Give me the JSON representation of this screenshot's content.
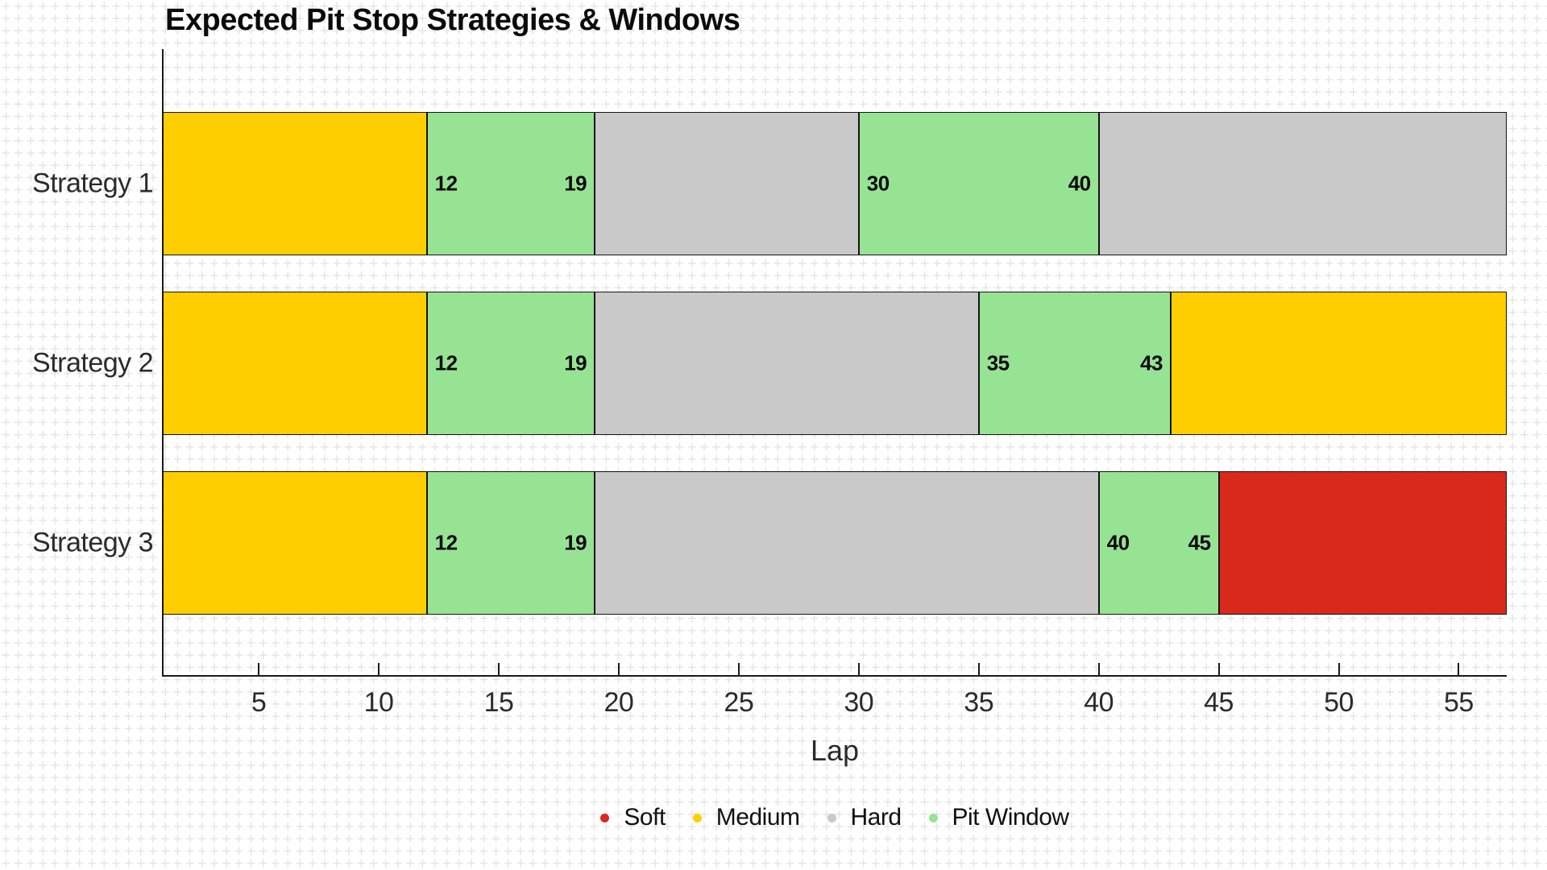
{
  "title": "Expected Pit Stop Strategies & Windows",
  "colors": {
    "soft": "#d9291c",
    "medium": "#ffce00",
    "hard": "#c9c9c9",
    "pit_window": "#97e394",
    "segment_border": "#141414",
    "axis_line": "#1a1a1a",
    "axis_text": "#2b2b2b",
    "title_text": "#0b0b0b",
    "background": "#ffffff",
    "grid_pattern": "#e2e2e2"
  },
  "chart_data": {
    "type": "bar",
    "subtype": "gantt-timeline",
    "orientation": "horizontal",
    "title": "Expected Pit Stop Strategies & Windows",
    "xlabel": "Lap",
    "xlim": [
      1,
      57
    ],
    "x_ticks": [
      "5",
      "10",
      "15",
      "20",
      "25",
      "30",
      "35",
      "40",
      "45",
      "50",
      "55"
    ],
    "grid": "page-wide light plus-sign pattern, no gridlines inside bars",
    "legend_position": "bottom-center",
    "legend": [
      {
        "label": "Soft",
        "color_key": "soft"
      },
      {
        "label": "Medium",
        "color_key": "medium"
      },
      {
        "label": "Hard",
        "color_key": "hard"
      },
      {
        "label": "Pit Window",
        "color_key": "pit_window"
      }
    ],
    "categories": [
      "Strategy 1",
      "Strategy 2",
      "Strategy 3"
    ],
    "series": [
      {
        "name": "Strategy 1",
        "segments": [
          {
            "compound": "Medium",
            "color_key": "medium",
            "start_lap": 1,
            "end_lap": 12
          },
          {
            "compound": "Pit Window",
            "color_key": "pit_window",
            "start_lap": 12,
            "end_lap": 19,
            "start_label": "12",
            "end_label": "19"
          },
          {
            "compound": "Hard",
            "color_key": "hard",
            "start_lap": 19,
            "end_lap": 30
          },
          {
            "compound": "Pit Window",
            "color_key": "pit_window",
            "start_lap": 30,
            "end_lap": 40,
            "start_label": "30",
            "end_label": "40"
          },
          {
            "compound": "Hard",
            "color_key": "hard",
            "start_lap": 40,
            "end_lap": 57
          }
        ]
      },
      {
        "name": "Strategy 2",
        "segments": [
          {
            "compound": "Medium",
            "color_key": "medium",
            "start_lap": 1,
            "end_lap": 12
          },
          {
            "compound": "Pit Window",
            "color_key": "pit_window",
            "start_lap": 12,
            "end_lap": 19,
            "start_label": "12",
            "end_label": "19"
          },
          {
            "compound": "Hard",
            "color_key": "hard",
            "start_lap": 19,
            "end_lap": 35
          },
          {
            "compound": "Pit Window",
            "color_key": "pit_window",
            "start_lap": 35,
            "end_lap": 43,
            "start_label": "35",
            "end_label": "43"
          },
          {
            "compound": "Medium",
            "color_key": "medium",
            "start_lap": 43,
            "end_lap": 57
          }
        ]
      },
      {
        "name": "Strategy 3",
        "segments": [
          {
            "compound": "Medium",
            "color_key": "medium",
            "start_lap": 1,
            "end_lap": 12
          },
          {
            "compound": "Pit Window",
            "color_key": "pit_window",
            "start_lap": 12,
            "end_lap": 19,
            "start_label": "12",
            "end_label": "19"
          },
          {
            "compound": "Hard",
            "color_key": "hard",
            "start_lap": 19,
            "end_lap": 40
          },
          {
            "compound": "Pit Window",
            "color_key": "pit_window",
            "start_lap": 40,
            "end_lap": 45,
            "start_label": "40",
            "end_label": "45"
          },
          {
            "compound": "Soft",
            "color_key": "soft",
            "start_lap": 45,
            "end_lap": 57
          }
        ]
      }
    ]
  }
}
